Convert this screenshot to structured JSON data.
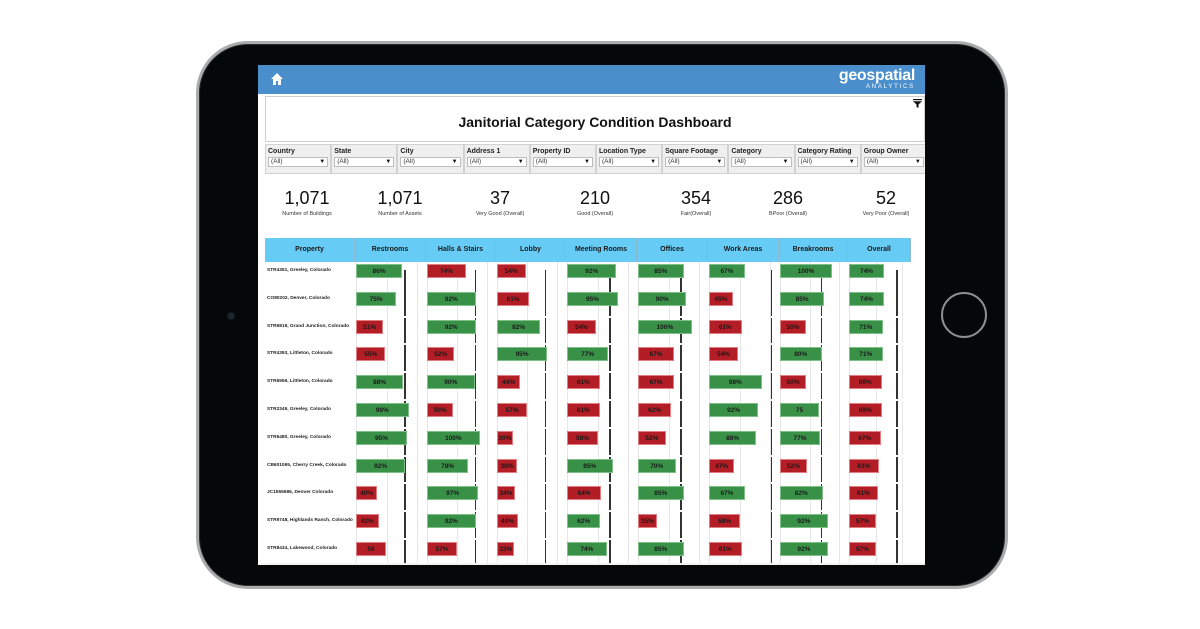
{
  "app": {
    "brand_main": "geospatial",
    "brand_sub": "ANALYTICS",
    "home_icon": "home-icon",
    "filter_icon": "filter-icon"
  },
  "dashboard": {
    "title": "Janitorial Category Condition Dashboard"
  },
  "filters": [
    {
      "label": "Country",
      "value": "(All)"
    },
    {
      "label": "State",
      "value": "(All)"
    },
    {
      "label": "City",
      "value": "(All)"
    },
    {
      "label": "Address 1",
      "value": "(All)"
    },
    {
      "label": "Property ID",
      "value": "(All)"
    },
    {
      "label": "Location Type",
      "value": "(All)"
    },
    {
      "label": "Square Footage",
      "value": "(All)"
    },
    {
      "label": "Category",
      "value": "(All)"
    },
    {
      "label": "Category Rating",
      "value": "(All)"
    },
    {
      "label": "Group Owner",
      "value": "(All)"
    }
  ],
  "kpis": [
    {
      "value": "1,071",
      "label": "Number of Buildings"
    },
    {
      "value": "1,071",
      "label": "Number of Assets"
    },
    {
      "value": "37",
      "label": "Very Good (Overall)"
    },
    {
      "value": "210",
      "label": "Good  (Overall)"
    },
    {
      "value": "354",
      "label": "Fair(Overall)"
    },
    {
      "value": "286",
      "label": "BPoor (Overall)"
    },
    {
      "value": "52",
      "label": "Very Poor (Overall)"
    }
  ],
  "colors": {
    "good": "#399148",
    "poor": "#b31d25",
    "header": "#66ccf5",
    "topbar": "#4a8ecb"
  },
  "table": {
    "columns": [
      "Property",
      "Restrooms",
      "Halls & Stairs",
      "Lobby",
      "Meeting Rooms",
      "Offices",
      "Work Areas",
      "Breakrooms",
      "Overall"
    ],
    "rows": [
      {
        "property": "STR4351, Greeley, Colorado",
        "values": [
          {
            "v": 86,
            "t": "86%",
            "s": "good"
          },
          {
            "v": 74,
            "t": "74%",
            "s": "bad"
          },
          {
            "v": 54,
            "t": "54%",
            "s": "bad"
          },
          {
            "v": 92,
            "t": "92%",
            "s": "good"
          },
          {
            "v": 85,
            "t": "85%",
            "s": "good"
          },
          {
            "v": 67,
            "t": "67%",
            "s": "good"
          },
          {
            "v": 100,
            "t": "100%",
            "s": "good"
          },
          {
            "v": 74,
            "t": "74%",
            "s": "good"
          }
        ]
      },
      {
        "property": "CO80202, Denver, Colorado",
        "values": [
          {
            "v": 75,
            "t": "75%",
            "s": "good"
          },
          {
            "v": 92,
            "t": "92%",
            "s": "good"
          },
          {
            "v": 61,
            "t": "61%",
            "s": "bad"
          },
          {
            "v": 95,
            "t": "95%",
            "s": "good"
          },
          {
            "v": 90,
            "t": "90%",
            "s": "good"
          },
          {
            "v": 45,
            "t": "45%",
            "s": "bad"
          },
          {
            "v": 85,
            "t": "85%",
            "s": "good"
          },
          {
            "v": 74,
            "t": "74%",
            "s": "good"
          }
        ]
      },
      {
        "property": "STR6819, Grand Junction, Colorado",
        "values": [
          {
            "v": 51,
            "t": "51%",
            "s": "bad"
          },
          {
            "v": 92,
            "t": "92%",
            "s": "good"
          },
          {
            "v": 82,
            "t": "82%",
            "s": "good"
          },
          {
            "v": 54,
            "t": "54%",
            "s": "bad"
          },
          {
            "v": 100,
            "t": "100%",
            "s": "good"
          },
          {
            "v": 61,
            "t": "61%",
            "s": "bad"
          },
          {
            "v": 50,
            "t": "50%",
            "s": "bad"
          },
          {
            "v": 71,
            "t": "71%",
            "s": "good"
          }
        ]
      },
      {
        "property": "STR4393, Littleton, Colorado",
        "values": [
          {
            "v": 55,
            "t": "55%",
            "s": "bad"
          },
          {
            "v": 52,
            "t": "52%",
            "s": "bad"
          },
          {
            "v": 95,
            "t": "95%",
            "s": "good"
          },
          {
            "v": 77,
            "t": "77%",
            "s": "good"
          },
          {
            "v": 67,
            "t": "67%",
            "s": "bad"
          },
          {
            "v": 54,
            "t": "54%",
            "s": "bad"
          },
          {
            "v": 80,
            "t": "80%",
            "s": "good"
          },
          {
            "v": 71,
            "t": "71%",
            "s": "good"
          }
        ]
      },
      {
        "property": "STR6556, Littleton, Colorado",
        "values": [
          {
            "v": 88,
            "t": "88%",
            "s": "good"
          },
          {
            "v": 90,
            "t": "90%",
            "s": "good"
          },
          {
            "v": 44,
            "t": "44%",
            "s": "bad"
          },
          {
            "v": 61,
            "t": "61%",
            "s": "bad"
          },
          {
            "v": 67,
            "t": "67%",
            "s": "bad"
          },
          {
            "v": 98,
            "t": "98%",
            "s": "good"
          },
          {
            "v": 50,
            "t": "50%",
            "s": "bad"
          },
          {
            "v": 69,
            "t": "69%",
            "s": "bad"
          }
        ]
      },
      {
        "property": "STR2349, Greeley, Colorado",
        "values": [
          {
            "v": 98,
            "t": "98%",
            "s": "good"
          },
          {
            "v": 50,
            "t": "50%",
            "s": "bad"
          },
          {
            "v": 57,
            "t": "57%",
            "s": "bad"
          },
          {
            "v": 61,
            "t": "61%",
            "s": "bad"
          },
          {
            "v": 62,
            "t": "62%",
            "s": "bad"
          },
          {
            "v": 92,
            "t": "92%",
            "s": "good"
          },
          {
            "v": 75,
            "t": "75",
            "s": "good"
          },
          {
            "v": 69,
            "t": "69%",
            "s": "bad"
          }
        ]
      },
      {
        "property": "STR6480, Greeley, Colorado",
        "values": [
          {
            "v": 95,
            "t": "95%",
            "s": "good"
          },
          {
            "v": 100,
            "t": "100%",
            "s": "good"
          },
          {
            "v": 30,
            "t": "30%",
            "s": "bad"
          },
          {
            "v": 58,
            "t": "58%",
            "s": "bad"
          },
          {
            "v": 52,
            "t": "52%",
            "s": "bad"
          },
          {
            "v": 88,
            "t": "88%",
            "s": "good"
          },
          {
            "v": 77,
            "t": "77%",
            "s": "good"
          },
          {
            "v": 67,
            "t": "67%",
            "s": "bad"
          }
        ]
      },
      {
        "property": "CB601065, Cherry Creek, Colorado",
        "values": [
          {
            "v": 92,
            "t": "92%",
            "s": "good"
          },
          {
            "v": 78,
            "t": "78%",
            "s": "good"
          },
          {
            "v": 38,
            "t": "38%",
            "s": "bad"
          },
          {
            "v": 85,
            "t": "85%",
            "s": "good"
          },
          {
            "v": 70,
            "t": "70%",
            "s": "good"
          },
          {
            "v": 47,
            "t": "47%",
            "s": "bad"
          },
          {
            "v": 52,
            "t": "52%",
            "s": "bad"
          },
          {
            "v": 63,
            "t": "63%",
            "s": "bad"
          }
        ]
      },
      {
        "property": "JC1555686, Denver Colorado",
        "values": [
          {
            "v": 40,
            "t": "40%",
            "s": "bad"
          },
          {
            "v": 97,
            "t": "97%",
            "s": "good"
          },
          {
            "v": 34,
            "t": "34%",
            "s": "bad"
          },
          {
            "v": 64,
            "t": "64%",
            "s": "bad"
          },
          {
            "v": 85,
            "t": "85%",
            "s": "good"
          },
          {
            "v": 67,
            "t": "67%",
            "s": "good"
          },
          {
            "v": 82,
            "t": "82%",
            "s": "good"
          },
          {
            "v": 61,
            "t": "61%",
            "s": "bad"
          }
        ]
      },
      {
        "property": "STR9748, Highlands Ranch, Colorado",
        "values": [
          {
            "v": 42,
            "t": "42%",
            "s": "bad"
          },
          {
            "v": 92,
            "t": "92%",
            "s": "good"
          },
          {
            "v": 40,
            "t": "40%",
            "s": "bad"
          },
          {
            "v": 62,
            "t": "62%",
            "s": "good"
          },
          {
            "v": 35,
            "t": "35%",
            "s": "bad"
          },
          {
            "v": 58,
            "t": "58%",
            "s": "bad"
          },
          {
            "v": 92,
            "t": "92%",
            "s": "good"
          },
          {
            "v": 57,
            "t": "57%",
            "s": "bad"
          }
        ]
      },
      {
        "property": "STR8434, Lakewood, Colorado",
        "values": [
          {
            "v": 56,
            "t": "56",
            "s": "bad"
          },
          {
            "v": 57,
            "t": "57%",
            "s": "bad"
          },
          {
            "v": 33,
            "t": "33%",
            "s": "bad"
          },
          {
            "v": 74,
            "t": "74%",
            "s": "good"
          },
          {
            "v": 85,
            "t": "85%",
            "s": "good"
          },
          {
            "v": 61,
            "t": "61%",
            "s": "bad"
          },
          {
            "v": 92,
            "t": "92%",
            "s": "good"
          },
          {
            "v": 57,
            "t": "57%",
            "s": "bad"
          }
        ]
      }
    ]
  }
}
